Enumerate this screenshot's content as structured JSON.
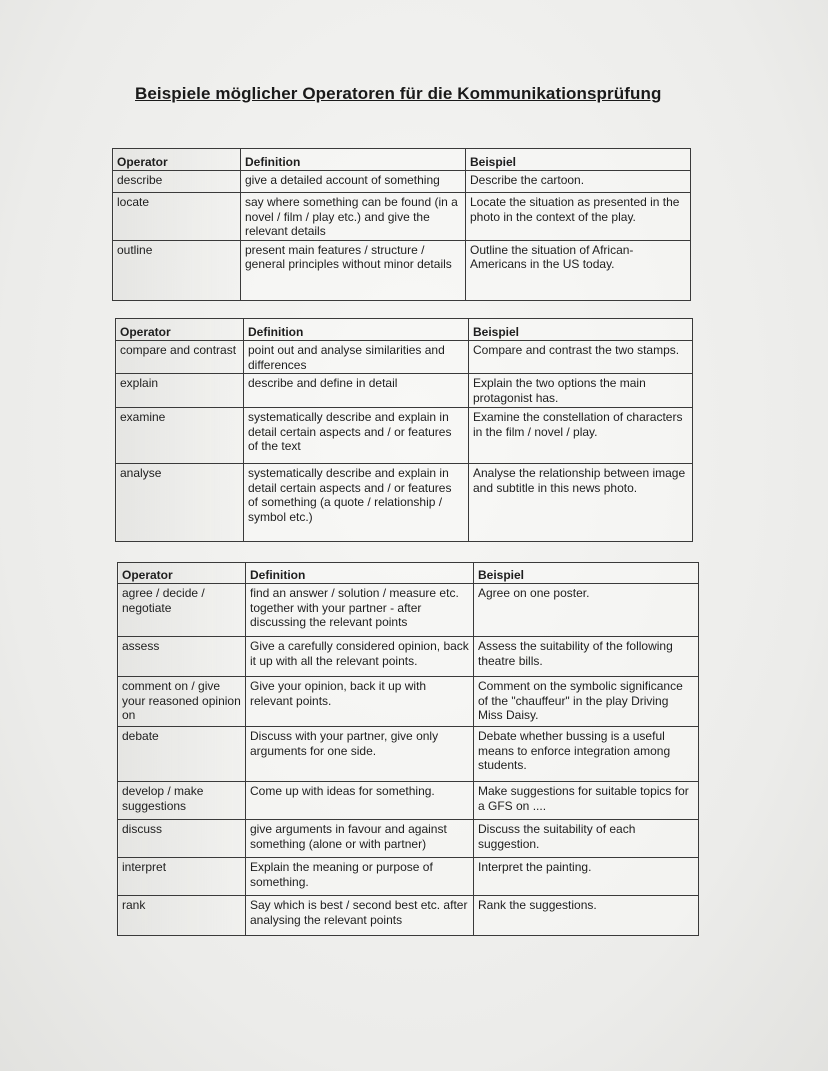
{
  "title": "Beispiele möglicher Operatoren für die Kommunikationsprüfung",
  "headers": [
    "Operator",
    "Definition",
    "Beispiel"
  ],
  "tables": [
    {
      "rows": [
        {
          "operator": "describe",
          "definition": "give a detailed account of something",
          "example": "Describe the cartoon."
        },
        {
          "operator": "locate",
          "definition": "say where something can be found (in a novel / film / play etc.) and give the relevant details",
          "example": "Locate the situation as presented in the photo in the context of the play."
        },
        {
          "operator": "outline",
          "definition": "present main features / structure / general principles without minor details",
          "example": "Outline the situation of African-Americans in the US today."
        }
      ]
    },
    {
      "rows": [
        {
          "operator": "compare and contrast",
          "definition": "point out and analyse similarities and differences",
          "example": "Compare and contrast the two stamps."
        },
        {
          "operator": "explain",
          "definition": "describe and define in detail",
          "example": "Explain the two options the main protagonist has."
        },
        {
          "operator": "examine",
          "definition": "systematically describe and explain in detail certain aspects and / or features of the text",
          "example": "Examine the constellation of characters in the film / novel / play."
        },
        {
          "operator": "analyse",
          "definition": "systematically describe and explain in detail certain aspects and / or features of something (a quote / relationship / symbol etc.)",
          "example": "Analyse the relationship between image and subtitle in this news photo."
        }
      ]
    },
    {
      "rows": [
        {
          "operator": "agree / decide / negotiate",
          "definition": "find an answer / solution / measure etc. together with your partner - after discussing the relevant points",
          "example": "Agree on one poster."
        },
        {
          "operator": "assess",
          "definition": "Give a carefully considered opinion, back it up with all the relevant points.",
          "example": "Assess the suitability of the following theatre bills."
        },
        {
          "operator": "comment on / give your reasoned opinion on",
          "definition": "Give your opinion, back it up with relevant points.",
          "example": "Comment on the symbolic significance of the \"chauffeur\" in the play Driving Miss Daisy."
        },
        {
          "operator": "debate",
          "definition": "Discuss with your partner, give only arguments for one side.",
          "example": "Debate whether bussing is a useful means to enforce integration among students."
        },
        {
          "operator": "develop / make suggestions",
          "definition": "Come up with ideas for something.",
          "example": "Make suggestions for suitable topics for a GFS on ...."
        },
        {
          "operator": "discuss",
          "definition": "give arguments in favour and against something (alone or with partner)",
          "example": "Discuss the suitability of each suggestion."
        },
        {
          "operator": "interpret",
          "definition": "Explain the meaning or purpose of something.",
          "example": "Interpret the painting."
        },
        {
          "operator": "rank",
          "definition": "Say which is best / second best etc. after analysing the relevant points",
          "example": "Rank the suggestions."
        }
      ]
    }
  ]
}
